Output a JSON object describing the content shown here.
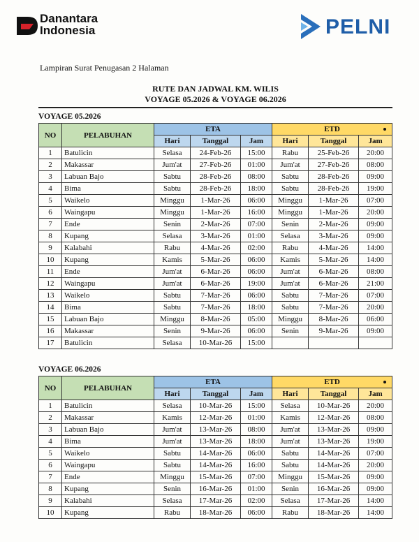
{
  "header": {
    "brand_left": [
      "Danantara",
      "Indonesia"
    ],
    "brand_right": "PELNI"
  },
  "attachment_note": "Lampiran Surat Penugasan 2 Halaman",
  "title": [
    "RUTE DAN JADWAL KM. WILIS",
    "VOYAGE 05.2026 & VOYAGE 06.2026"
  ],
  "voyages": [
    {
      "label": "VOYAGE 05.2026",
      "table": {
        "headers": {
          "no": "NO",
          "port": "PELABUHAN",
          "eta": "ETA",
          "etd": "ETD",
          "eta_sub": [
            "Hari",
            "Tanggal",
            "Jam"
          ],
          "etd_sub": [
            "Hari",
            "Tanggal",
            "Jam"
          ]
        },
        "rows": [
          [
            1,
            "Batulicin",
            "Selasa",
            "24-Feb-26",
            "15:00",
            "Rabu",
            "25-Feb-26",
            "20:00"
          ],
          [
            2,
            "Makassar",
            "Jum'at",
            "27-Feb-26",
            "01:00",
            "Jum'at",
            "27-Feb-26",
            "08:00"
          ],
          [
            3,
            "Labuan Bajo",
            "Sabtu",
            "28-Feb-26",
            "08:00",
            "Sabtu",
            "28-Feb-26",
            "09:00"
          ],
          [
            4,
            "Bima",
            "Sabtu",
            "28-Feb-26",
            "18:00",
            "Sabtu",
            "28-Feb-26",
            "19:00"
          ],
          [
            5,
            "Waikelo",
            "Minggu",
            "1-Mar-26",
            "06:00",
            "Minggu",
            "1-Mar-26",
            "07:00"
          ],
          [
            6,
            "Waingapu",
            "Minggu",
            "1-Mar-26",
            "16:00",
            "Minggu",
            "1-Mar-26",
            "20:00"
          ],
          [
            7,
            "Ende",
            "Senin",
            "2-Mar-26",
            "07:00",
            "Senin",
            "2-Mar-26",
            "09:00"
          ],
          [
            8,
            "Kupang",
            "Selasa",
            "3-Mar-26",
            "01:00",
            "Selasa",
            "3-Mar-26",
            "09:00"
          ],
          [
            9,
            "Kalabahi",
            "Rabu",
            "4-Mar-26",
            "02:00",
            "Rabu",
            "4-Mar-26",
            "14:00"
          ],
          [
            10,
            "Kupang",
            "Kamis",
            "5-Mar-26",
            "06:00",
            "Kamis",
            "5-Mar-26",
            "14:00"
          ],
          [
            11,
            "Ende",
            "Jum'at",
            "6-Mar-26",
            "06:00",
            "Jum'at",
            "6-Mar-26",
            "08:00"
          ],
          [
            12,
            "Waingapu",
            "Jum'at",
            "6-Mar-26",
            "19:00",
            "Jum'at",
            "6-Mar-26",
            "21:00"
          ],
          [
            13,
            "Waikelo",
            "Sabtu",
            "7-Mar-26",
            "06:00",
            "Sabtu",
            "7-Mar-26",
            "07:00"
          ],
          [
            14,
            "Bima",
            "Sabtu",
            "7-Mar-26",
            "18:00",
            "Sabtu",
            "7-Mar-26",
            "20:00"
          ],
          [
            15,
            "Labuan Bajo",
            "Minggu",
            "8-Mar-26",
            "05:00",
            "Minggu",
            "8-Mar-26",
            "06:00"
          ],
          [
            16,
            "Makassar",
            "Senin",
            "9-Mar-26",
            "06:00",
            "Senin",
            "9-Mar-26",
            "09:00"
          ],
          [
            17,
            "Batulicin",
            "Selasa",
            "10-Mar-26",
            "15:00"
          ]
        ]
      }
    },
    {
      "label": "VOYAGE 06.2026",
      "table": {
        "headers": {
          "no": "NO",
          "port": "PELABUHAN",
          "eta": "ETA",
          "etd": "ETD",
          "eta_sub": [
            "Hari",
            "Tanggal",
            "Jam"
          ],
          "etd_sub": [
            "Hari",
            "Tanggal",
            "Jam"
          ]
        },
        "rows": [
          [
            1,
            "Batulicin",
            "Selasa",
            "10-Mar-26",
            "15:00",
            "Selasa",
            "10-Mar-26",
            "20:00"
          ],
          [
            2,
            "Makassar",
            "Kamis",
            "12-Mar-26",
            "01:00",
            "Kamis",
            "12-Mar-26",
            "08:00"
          ],
          [
            3,
            "Labuan Bajo",
            "Jum'at",
            "13-Mar-26",
            "08:00",
            "Jum'at",
            "13-Mar-26",
            "09:00"
          ],
          [
            4,
            "Bima",
            "Jum'at",
            "13-Mar-26",
            "18:00",
            "Jum'at",
            "13-Mar-26",
            "19:00"
          ],
          [
            5,
            "Waikelo",
            "Sabtu",
            "14-Mar-26",
            "06:00",
            "Sabtu",
            "14-Mar-26",
            "07:00"
          ],
          [
            6,
            "Waingapu",
            "Sabtu",
            "14-Mar-26",
            "16:00",
            "Sabtu",
            "14-Mar-26",
            "20:00"
          ],
          [
            7,
            "Ende",
            "Minggu",
            "15-Mar-26",
            "07:00",
            "Minggu",
            "15-Mar-26",
            "09:00"
          ],
          [
            8,
            "Kupang",
            "Senin",
            "16-Mar-26",
            "01:00",
            "Senin",
            "16-Mar-26",
            "09:00"
          ],
          [
            9,
            "Kalabahi",
            "Selasa",
            "17-Mar-26",
            "02:00",
            "Selasa",
            "17-Mar-26",
            "14:00"
          ],
          [
            10,
            "Kupang",
            "Rabu",
            "18-Mar-26",
            "06:00",
            "Rabu",
            "18-Mar-26",
            "14:00"
          ]
        ]
      }
    }
  ]
}
